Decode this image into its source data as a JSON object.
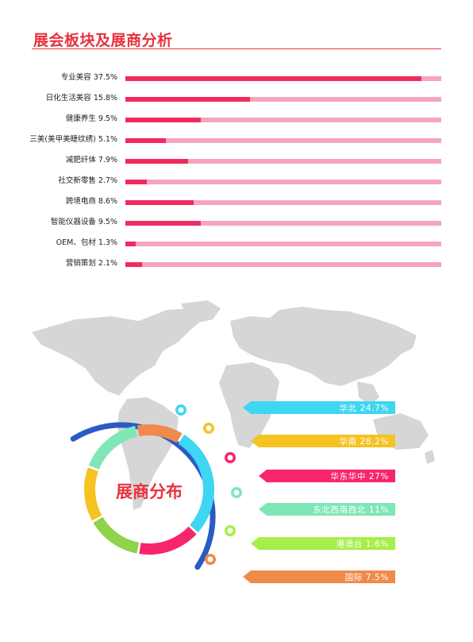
{
  "page": {
    "title": "展会板块及展商分析",
    "accent_color": "#e8323c"
  },
  "chart_data": [
    {
      "type": "bar",
      "orientation": "horizontal",
      "categories": [
        "专业美容",
        "日化生活美容",
        "健康养生",
        "三美(美甲美睫纹绣)",
        "减肥纤体",
        "社交新零售",
        "跨境电商",
        "智能仪器设备",
        "OEM、包材",
        "营销策划"
      ],
      "values": [
        37.5,
        15.8,
        9.5,
        5.1,
        7.9,
        2.7,
        8.6,
        9.5,
        1.3,
        2.1
      ],
      "labels": [
        "专业美容 37.5%",
        "日化生活美容 15.8%",
        "健康养生 9.5%",
        "三美(美甲美睫纹绣) 5.1%",
        "减肥纤体 7.9%",
        "社交新零售 2.7%",
        "跨境电商 8.6%",
        "智能仪器设备 9.5%",
        "OEM、包材 1.3%",
        "营销策划 2.1%"
      ],
      "unit": "%",
      "colors": {
        "fill": "#f02a5e",
        "track": "#f6a3c0"
      }
    },
    {
      "type": "pie",
      "title": "展商分布",
      "categories": [
        "华北",
        "华南",
        "华东华中",
        "东北西南西北",
        "港澳台",
        "国际"
      ],
      "values": [
        24.7,
        28.2,
        27,
        11,
        1.6,
        7.5
      ],
      "labels": [
        "华北 24.7%",
        "华南 28.2%",
        "华东华中 27%",
        "东北西南西北 11%",
        "港澳台 1.6%",
        "国际 7.5%"
      ],
      "colors": [
        "#3ed6f2",
        "#f5c322",
        "#f7266a",
        "#7fe6b8",
        "#a6ef4a",
        "#f08a4b"
      ],
      "ring_colors": [
        "#3ed6f2",
        "#f7266a",
        "#8ed34a",
        "#f5c322",
        "#7fe6b8",
        "#f08a4b"
      ],
      "arc_color": "#2a5bc4"
    }
  ]
}
